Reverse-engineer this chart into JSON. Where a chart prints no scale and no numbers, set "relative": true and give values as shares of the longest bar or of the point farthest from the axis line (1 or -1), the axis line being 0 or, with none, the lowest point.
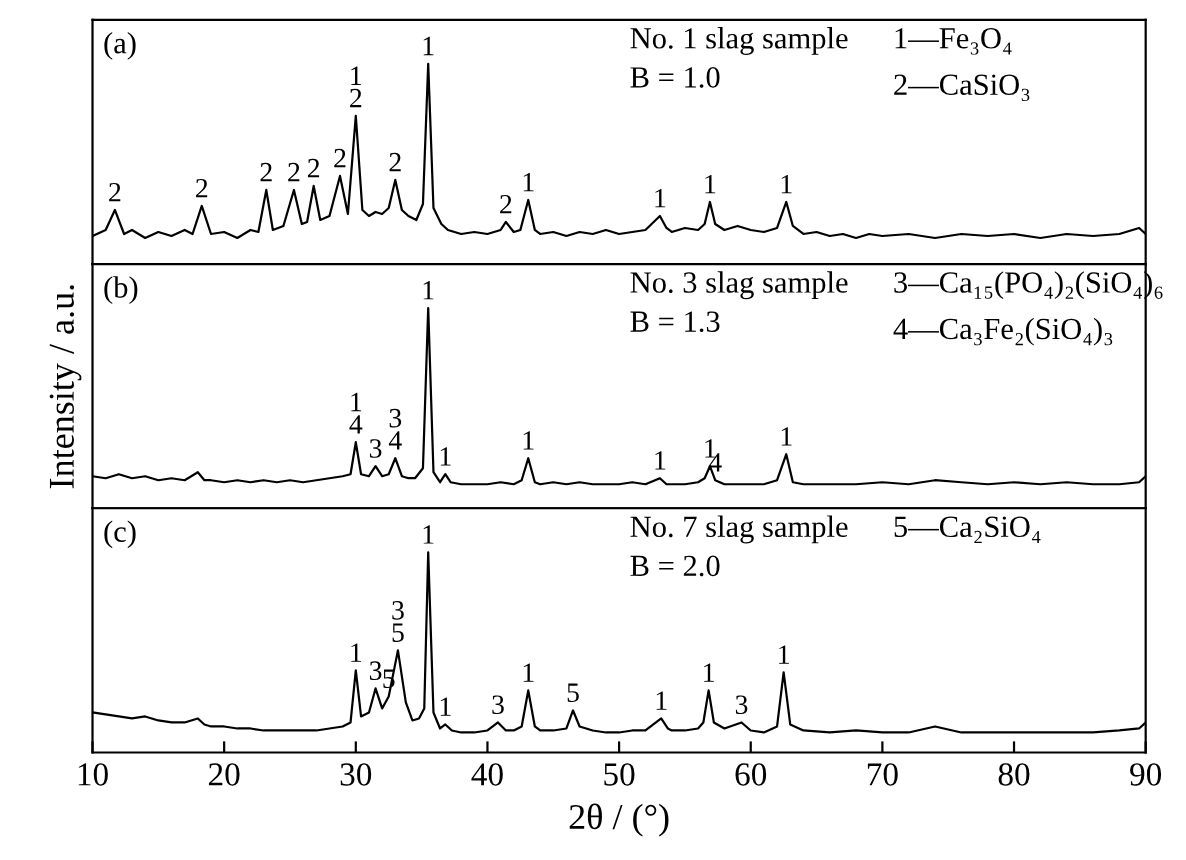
{
  "chart_data": [
    {
      "type": "line",
      "relative": true,
      "xlim": [
        10,
        90
      ],
      "tick_labels": false,
      "color": "#000000",
      "x": [
        10,
        11,
        11.7,
        12.4,
        13,
        14,
        15,
        16,
        17,
        17.6,
        18.3,
        19,
        20,
        21,
        22,
        22.6,
        23.2,
        23.7,
        24.5,
        25.3,
        25.9,
        26.3,
        26.8,
        27.3,
        28,
        28.8,
        29.4,
        30,
        30.5,
        31,
        31.5,
        32,
        32.5,
        33,
        33.5,
        34,
        34.6,
        35.1,
        35.5,
        35.9,
        36.5,
        37,
        38,
        39,
        40,
        41,
        41.4,
        42,
        42.5,
        43.1,
        43.6,
        44,
        45,
        46,
        47,
        48,
        49,
        50,
        51,
        52,
        53.1,
        53.6,
        54,
        55,
        56,
        56.5,
        56.9,
        57.3,
        58,
        59,
        60,
        61,
        62,
        62.7,
        63.2,
        64,
        65,
        66,
        67,
        68,
        69,
        70,
        72,
        74,
        76,
        78,
        80,
        82,
        84,
        86,
        88,
        89.5,
        90
      ],
      "values": [
        0.14,
        0.17,
        0.27,
        0.15,
        0.17,
        0.13,
        0.16,
        0.14,
        0.17,
        0.15,
        0.29,
        0.15,
        0.16,
        0.13,
        0.17,
        0.16,
        0.37,
        0.17,
        0.19,
        0.37,
        0.2,
        0.21,
        0.39,
        0.22,
        0.24,
        0.44,
        0.25,
        0.74,
        0.27,
        0.24,
        0.26,
        0.25,
        0.28,
        0.42,
        0.27,
        0.24,
        0.22,
        0.3,
        1,
        0.28,
        0.2,
        0.17,
        0.15,
        0.16,
        0.15,
        0.17,
        0.21,
        0.16,
        0.17,
        0.32,
        0.17,
        0.15,
        0.16,
        0.14,
        0.16,
        0.15,
        0.17,
        0.15,
        0.16,
        0.17,
        0.24,
        0.18,
        0.16,
        0.18,
        0.17,
        0.2,
        0.31,
        0.2,
        0.17,
        0.19,
        0.17,
        0.16,
        0.18,
        0.31,
        0.19,
        0.15,
        0.16,
        0.14,
        0.15,
        0.13,
        0.15,
        0.14,
        0.15,
        0.13,
        0.15,
        0.14,
        0.15,
        0.13,
        0.15,
        0.14,
        0.15,
        0.18,
        0.15
      ],
      "annotations": [
        "(a)",
        "No. 1 slag sample",
        "B = 1.0",
        "1—Fe₃O₄",
        "2—CaSiO₃",
        {
          "text": "2",
          "x": 11.7,
          "y": 0.27
        },
        {
          "text": "2",
          "x": 18.3,
          "y": 0.29
        },
        {
          "text": "2",
          "x": 23.2,
          "y": 0.37
        },
        {
          "text": "2",
          "x": 25.3,
          "y": 0.37
        },
        {
          "text": "2",
          "x": 26.8,
          "y": 0.39
        },
        {
          "text": "2",
          "x": 28.8,
          "y": 0.44
        },
        {
          "text": "1\n2",
          "x": 30,
          "y": 0.74
        },
        {
          "text": "2",
          "x": 33,
          "y": 0.42
        },
        {
          "text": "1",
          "x": 35.5,
          "y": 1
        },
        {
          "text": "2",
          "x": 41.4,
          "y": 0.21
        },
        {
          "text": "1",
          "x": 43.1,
          "y": 0.32
        },
        {
          "text": "1",
          "x": 53.1,
          "y": 0.24
        },
        {
          "text": "1",
          "x": 56.9,
          "y": 0.31
        },
        {
          "text": "1",
          "x": 62.7,
          "y": 0.31
        }
      ]
    },
    {
      "type": "line",
      "relative": true,
      "xlim": [
        10,
        90
      ],
      "tick_labels": false,
      "color": "#000000",
      "ylabel": "Intensity / a.u.",
      "x": [
        10,
        11,
        12,
        13,
        14,
        15,
        16,
        17,
        18,
        18.5,
        19,
        20,
        21,
        22,
        23,
        24,
        25,
        26,
        27,
        28,
        29,
        29.6,
        30,
        30.4,
        31,
        31.5,
        32,
        32.5,
        33,
        33.5,
        34,
        34.5,
        35.1,
        35.5,
        35.9,
        36.4,
        36.8,
        37.2,
        38,
        39,
        40,
        41,
        42,
        42.6,
        43.1,
        43.6,
        44,
        45,
        46,
        47,
        48,
        49,
        50,
        51,
        52,
        53.1,
        53.6,
        54,
        55,
        56,
        56.5,
        56.9,
        57.3,
        58,
        59,
        60,
        61,
        62,
        62.7,
        63.2,
        64,
        66,
        68,
        70,
        72,
        74,
        76,
        78,
        80,
        82,
        84,
        86,
        88,
        89.5,
        90
      ],
      "values": [
        0.16,
        0.15,
        0.17,
        0.15,
        0.16,
        0.14,
        0.15,
        0.14,
        0.18,
        0.14,
        0.14,
        0.13,
        0.14,
        0.13,
        0.14,
        0.13,
        0.14,
        0.13,
        0.14,
        0.15,
        0.16,
        0.17,
        0.33,
        0.17,
        0.16,
        0.21,
        0.16,
        0.17,
        0.25,
        0.16,
        0.15,
        0.15,
        0.2,
        1,
        0.18,
        0.13,
        0.17,
        0.13,
        0.12,
        0.12,
        0.12,
        0.13,
        0.12,
        0.14,
        0.25,
        0.13,
        0.12,
        0.13,
        0.12,
        0.13,
        0.12,
        0.12,
        0.12,
        0.13,
        0.12,
        0.15,
        0.12,
        0.12,
        0.12,
        0.13,
        0.15,
        0.21,
        0.14,
        0.12,
        0.12,
        0.12,
        0.12,
        0.14,
        0.27,
        0.13,
        0.12,
        0.12,
        0.12,
        0.13,
        0.12,
        0.14,
        0.13,
        0.12,
        0.13,
        0.12,
        0.13,
        0.12,
        0.12,
        0.13,
        0.16
      ],
      "annotations": [
        "(b)",
        "No. 3 slag sample",
        "B = 1.3",
        "3—Ca₁₅(PO₄)₂(SiO₄)₆",
        "4—Ca₃Fe₂(SiO₄)₃",
        {
          "text": "1\n4",
          "x": 30,
          "y": 0.33
        },
        {
          "text": "3",
          "x": 31.5,
          "y": 0.21
        },
        {
          "text": "3\n4",
          "x": 33,
          "y": 0.25
        },
        {
          "text": "1",
          "x": 35.5,
          "y": 1
        },
        {
          "text": "1",
          "x": 36.8,
          "y": 0.17
        },
        {
          "text": "1",
          "x": 43.1,
          "y": 0.25
        },
        {
          "text": "1",
          "x": 53.1,
          "y": 0.15
        },
        {
          "text": "1",
          "x": 56.9,
          "y": 0.21
        },
        {
          "text": "4",
          "x": 57.3,
          "y": 0.14
        },
        {
          "text": "1",
          "x": 62.7,
          "y": 0.27
        }
      ]
    },
    {
      "type": "line",
      "relative": true,
      "xlim": [
        10,
        90
      ],
      "xticks": [
        10,
        20,
        30,
        40,
        50,
        60,
        70,
        80,
        90
      ],
      "tick_labels": "x",
      "color": "#000000",
      "xlabel": "2θ / (°)",
      "x": [
        10,
        11,
        12,
        13,
        14,
        15,
        16,
        17,
        18,
        18.5,
        19,
        20,
        21,
        22,
        23,
        24,
        25,
        26,
        27,
        28,
        29,
        29.6,
        30,
        30.4,
        31,
        31.5,
        32,
        32.5,
        33.2,
        33.8,
        34.3,
        34.8,
        35.2,
        35.5,
        35.9,
        36.4,
        36.8,
        37.3,
        38,
        39,
        40,
        40.8,
        41.4,
        42,
        42.6,
        43.1,
        43.6,
        44,
        45,
        46,
        46.5,
        47,
        48,
        49,
        50,
        51,
        52,
        53.2,
        53.7,
        54,
        55,
        56,
        56.4,
        56.8,
        57.2,
        58,
        59.3,
        60,
        61,
        62,
        62.5,
        63,
        64,
        66,
        68,
        70,
        72,
        74,
        76,
        78,
        80,
        82,
        84,
        86,
        88,
        89.5,
        90
      ],
      "values": [
        0.2,
        0.19,
        0.18,
        0.17,
        0.18,
        0.16,
        0.15,
        0.15,
        0.17,
        0.14,
        0.13,
        0.13,
        0.12,
        0.12,
        0.11,
        0.11,
        0.11,
        0.11,
        0.11,
        0.12,
        0.13,
        0.15,
        0.41,
        0.18,
        0.2,
        0.32,
        0.22,
        0.28,
        0.51,
        0.25,
        0.16,
        0.17,
        0.22,
        1,
        0.2,
        0.12,
        0.14,
        0.11,
        0.1,
        0.1,
        0.11,
        0.15,
        0.11,
        0.11,
        0.13,
        0.31,
        0.13,
        0.11,
        0.11,
        0.12,
        0.21,
        0.13,
        0.11,
        0.1,
        0.1,
        0.11,
        0.11,
        0.17,
        0.12,
        0.11,
        0.11,
        0.12,
        0.15,
        0.31,
        0.15,
        0.12,
        0.15,
        0.11,
        0.1,
        0.13,
        0.4,
        0.14,
        0.11,
        0.1,
        0.11,
        0.1,
        0.1,
        0.13,
        0.1,
        0.1,
        0.1,
        0.1,
        0.1,
        0.1,
        0.11,
        0.12,
        0.15
      ],
      "annotations": [
        "(c)",
        "No. 7 slag sample",
        "B = 2.0",
        "5—Ca₂SiO₄",
        {
          "text": "1",
          "x": 30,
          "y": 0.41
        },
        {
          "text": "3",
          "x": 31.5,
          "y": 0.32
        },
        {
          "text": "5",
          "x": 32.5,
          "y": 0.28
        },
        {
          "text": "3\n5",
          "x": 33.2,
          "y": 0.51
        },
        {
          "text": "1",
          "x": 35.5,
          "y": 1
        },
        {
          "text": "1",
          "x": 36.8,
          "y": 0.14
        },
        {
          "text": "3",
          "x": 40.8,
          "y": 0.15
        },
        {
          "text": "1",
          "x": 43.1,
          "y": 0.31
        },
        {
          "text": "5",
          "x": 46.5,
          "y": 0.21
        },
        {
          "text": "1",
          "x": 53.2,
          "y": 0.17
        },
        {
          "text": "1",
          "x": 56.8,
          "y": 0.31
        },
        {
          "text": "3",
          "x": 59.3,
          "y": 0.15
        },
        {
          "text": "1",
          "x": 62.5,
          "y": 0.4
        }
      ]
    }
  ]
}
